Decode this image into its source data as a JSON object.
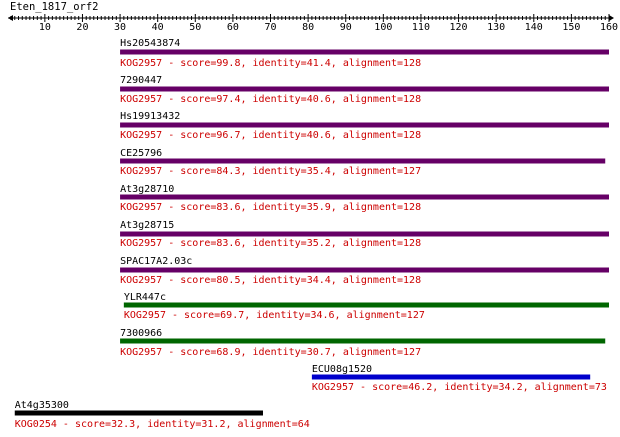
{
  "query": {
    "name": "Eten_1817_orf2",
    "axis_min": 1,
    "axis_max": 160,
    "ticks": [
      10,
      20,
      30,
      40,
      50,
      60,
      70,
      80,
      90,
      100,
      110,
      120,
      130,
      140,
      150,
      160
    ]
  },
  "colors": {
    "text": "#000000",
    "annotation": "#cc0000",
    "purple": "#660066",
    "green": "#006600",
    "blue": "#0000cc",
    "black": "#000000"
  },
  "hits": [
    {
      "name": "Hs20543874",
      "start": 30,
      "end": 160,
      "color": "purple",
      "label": "KOG2957 - score=99.8, identity=41.4, alignment=128"
    },
    {
      "name": "7290447",
      "start": 30,
      "end": 160,
      "color": "purple",
      "label": "KOG2957 - score=97.4, identity=40.6, alignment=128"
    },
    {
      "name": "Hs19913432",
      "start": 30,
      "end": 160,
      "color": "purple",
      "label": "KOG2957 - score=96.7, identity=40.6, alignment=128"
    },
    {
      "name": "CE25796",
      "start": 30,
      "end": 159,
      "color": "purple",
      "label": "KOG2957 - score=84.3, identity=35.4, alignment=127"
    },
    {
      "name": "At3g28710",
      "start": 30,
      "end": 160,
      "color": "purple",
      "label": "KOG2957 - score=83.6, identity=35.9, alignment=128"
    },
    {
      "name": "At3g28715",
      "start": 30,
      "end": 160,
      "color": "purple",
      "label": "KOG2957 - score=83.6, identity=35.2, alignment=128"
    },
    {
      "name": "SPAC17A2.03c",
      "start": 30,
      "end": 160,
      "color": "purple",
      "label": "KOG2957 - score=80.5, identity=34.4, alignment=128"
    },
    {
      "name": "YLR447c",
      "start": 31,
      "end": 160,
      "color": "green",
      "label": "KOG2957 - score=69.7, identity=34.6, alignment=127"
    },
    {
      "name": "7300966",
      "start": 30,
      "end": 159,
      "color": "green",
      "label": "KOG2957 - score=68.9, identity=30.7, alignment=127"
    },
    {
      "name": "ECU08g1520",
      "start": 81,
      "end": 155,
      "color": "blue",
      "label": "KOG2957 - score=46.2, identity=34.2, alignment=73"
    },
    {
      "name": "At4g35300",
      "start": 2,
      "end": 68,
      "color": "black",
      "label": "KOG0254 - score=32.3, identity=31.2, alignment=64"
    }
  ]
}
